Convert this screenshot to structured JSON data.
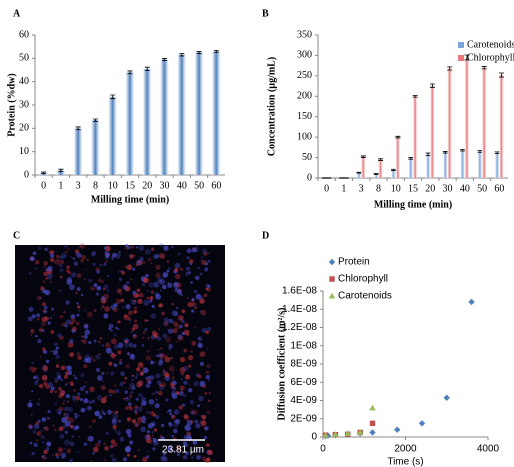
{
  "chart_data": [
    {
      "type": "bar",
      "label": "A",
      "x_label": "Milling time (min)",
      "y_label": "Protein (%dw)",
      "categories": [
        "0",
        "1",
        "3",
        "8",
        "10",
        "15",
        "20",
        "30",
        "40",
        "50",
        "60"
      ],
      "values": [
        1,
        2,
        20,
        23.5,
        33.5,
        44,
        45.5,
        49.5,
        51.5,
        52.5,
        53
      ],
      "errors": [
        0.3,
        0.5,
        0.6,
        0.5,
        0.8,
        0.6,
        0.7,
        0.4,
        0.5,
        0.4,
        0.4
      ],
      "color": "#4f81bd",
      "ylim": [
        0,
        60
      ],
      "yticks": [
        0,
        10,
        20,
        30,
        40,
        50,
        60
      ]
    },
    {
      "type": "bar",
      "label": "B",
      "x_label": "Milling time (min)",
      "y_label": "Concentration (µg/mL)",
      "categories": [
        "0",
        "1",
        "3",
        "8",
        "10",
        "15",
        "20",
        "30",
        "40",
        "50",
        "60"
      ],
      "series": [
        {
          "name": "Carotenoids",
          "color": "#7ba4d9",
          "values": [
            0,
            0,
            13,
            10,
            20,
            48,
            58,
            63,
            68,
            65,
            62
          ],
          "errors": [
            0.5,
            0.5,
            1,
            1,
            1.5,
            2,
            3,
            2,
            2,
            2,
            2
          ]
        },
        {
          "name": "Chlorophyll",
          "color": "#e8787a",
          "values": [
            0,
            0,
            52,
            45,
            100,
            200,
            226,
            268,
            295,
            270,
            252
          ],
          "errors": [
            0.5,
            0.5,
            2,
            2,
            2,
            2,
            4,
            4,
            6,
            3,
            5
          ]
        }
      ],
      "ylim": [
        0,
        350
      ],
      "yticks": [
        0,
        50,
        100,
        150,
        200,
        250,
        300,
        350
      ],
      "legend": "top-right"
    },
    {
      "type": "image",
      "label": "C",
      "scale_bar": "23.81 µm"
    },
    {
      "type": "scatter",
      "label": "D",
      "x_label": "Time (s)",
      "y_label": "Diffusion coefficient (m²/s)",
      "series": [
        {
          "name": "Protein",
          "color": "#4f81bd",
          "marker": "diamond",
          "x": [
            60,
            120,
            300,
            600,
            900,
            1200,
            1800,
            2400,
            3000,
            3600
          ],
          "values": [
            1e-10,
            1.5e-10,
            2e-10,
            3e-10,
            4e-10,
            5e-10,
            8e-10,
            1.5e-09,
            4.3e-09,
            1.48e-08
          ]
        },
        {
          "name": "Chlorophyll",
          "color": "#c0504d",
          "marker": "square",
          "x": [
            60,
            300,
            600,
            900,
            1200
          ],
          "values": [
            2e-10,
            2.5e-10,
            3e-10,
            5e-10,
            1.5e-09
          ]
        },
        {
          "name": "Carotenoids",
          "color": "#9bbb59",
          "marker": "triangle",
          "x": [
            60,
            300,
            600,
            900,
            1200
          ],
          "values": [
            2e-10,
            3e-10,
            4e-10,
            5e-10,
            3.2e-09
          ]
        }
      ],
      "xlim": [
        0,
        4000
      ],
      "xticks": [
        0,
        2000,
        4000
      ],
      "ylim": [
        0,
        1.6e-08
      ],
      "yticks": [
        0,
        {
          "value": 2e-09,
          "label": "2E-09"
        },
        {
          "value": 4e-09,
          "label": "4E-09"
        },
        {
          "value": 6e-09,
          "label": "6E-09"
        },
        {
          "value": 8e-09,
          "label": "8E-09"
        },
        {
          "value": 1e-08,
          "label": "1E-08"
        },
        {
          "value": 1.2e-08,
          "label": "1.2E-08"
        },
        {
          "value": 1.4e-08,
          "label": "1.4E-08"
        },
        {
          "value": 1.6e-08,
          "label": "1.6E-08"
        }
      ],
      "legend": "top-left"
    }
  ]
}
